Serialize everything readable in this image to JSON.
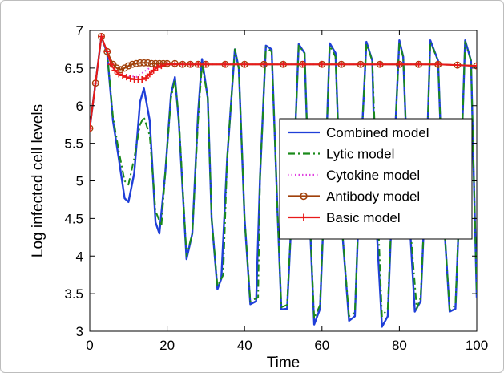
{
  "chart_data": {
    "type": "line",
    "title": "",
    "xlabel": "Time",
    "ylabel": "Log infected cell levels",
    "xlim": [
      0,
      100
    ],
    "ylim": [
      3,
      7
    ],
    "xticks": [
      0,
      20,
      40,
      60,
      80,
      100
    ],
    "yticks": [
      3,
      3.5,
      4,
      4.5,
      5,
      5.5,
      6,
      6.5,
      7
    ],
    "grid": false,
    "legend_position": "right",
    "series": [
      {
        "name": "Combined model",
        "color": "#1f3fd8",
        "style": "solid",
        "x": [
          0,
          1.5,
          3,
          4.5,
          6,
          7.5,
          9,
          10,
          11.5,
          13,
          14,
          15.5,
          17,
          18,
          19.5,
          21,
          22,
          23,
          25,
          26.5,
          28,
          29,
          30.5,
          31.5,
          33,
          34,
          35.5,
          37.5,
          38.5,
          40,
          41.5,
          43,
          44,
          45.5,
          47,
          48.5,
          49.5,
          51,
          52.5,
          54,
          55.5,
          57,
          58,
          59.5,
          61,
          62,
          63.5,
          65,
          67,
          68.5,
          70,
          71.5,
          73,
          74,
          75.5,
          77,
          78.5,
          80,
          81,
          82.5,
          84,
          85.5,
          87,
          88,
          90,
          91.5,
          93,
          94.5,
          96,
          97,
          98.5,
          100
        ],
        "y": [
          5.7,
          6.3,
          6.92,
          6.7,
          5.8,
          5.3,
          4.77,
          4.72,
          5.1,
          6.05,
          6.23,
          5.8,
          4.45,
          4.3,
          5.1,
          6.15,
          6.38,
          5.8,
          3.96,
          4.3,
          5.9,
          6.62,
          6.1,
          4.5,
          3.56,
          3.7,
          5.3,
          6.75,
          6.5,
          4.5,
          3.36,
          3.4,
          5.05,
          6.8,
          6.75,
          4.6,
          3.29,
          3.3,
          4.9,
          6.82,
          6.7,
          4.3,
          3.09,
          3.3,
          5.3,
          6.83,
          6.7,
          4.5,
          3.14,
          3.2,
          5.3,
          6.85,
          6.6,
          4.5,
          3.06,
          3.2,
          5.2,
          6.87,
          6.65,
          4.6,
          3.26,
          3.4,
          5.2,
          6.87,
          6.6,
          4.5,
          3.26,
          3.3,
          5.3,
          6.87,
          6.6,
          3.45
        ]
      },
      {
        "name": "Lytic model",
        "color": "#1a8a1a",
        "style": "dashdot",
        "x": [
          0,
          1.5,
          3,
          4.5,
          6,
          7.5,
          9,
          10,
          11.5,
          13,
          14,
          15.5,
          17,
          18.5,
          19.5,
          21,
          22,
          23,
          25,
          26.5,
          28,
          29,
          30.5,
          31.5,
          33,
          34.5,
          35.5,
          37.5,
          38.5,
          40,
          41.5,
          43.5,
          44,
          45.5,
          47,
          48.5,
          49.5,
          51,
          52.5,
          54,
          55.5,
          57,
          58,
          59.5,
          61,
          62,
          63.5,
          65,
          67,
          68.5,
          70,
          71.5,
          73,
          74.5,
          75.5,
          77,
          78.5,
          80,
          81,
          82.5,
          84.5,
          85.5,
          87,
          88,
          90,
          91.5,
          93,
          94.5,
          96,
          97,
          98.5,
          100
        ],
        "y": [
          5.7,
          6.3,
          6.92,
          6.7,
          5.85,
          5.4,
          5.0,
          4.95,
          5.3,
          5.75,
          5.85,
          5.6,
          4.6,
          4.4,
          5.1,
          6.1,
          6.35,
          5.85,
          4.0,
          4.3,
          5.8,
          6.55,
          6.1,
          4.5,
          3.6,
          3.75,
          5.3,
          6.75,
          6.5,
          4.5,
          3.4,
          3.45,
          5.05,
          6.78,
          6.72,
          4.6,
          3.32,
          3.35,
          4.9,
          6.8,
          6.7,
          4.35,
          3.17,
          3.35,
          5.3,
          6.8,
          6.65,
          4.5,
          3.2,
          3.25,
          5.3,
          6.82,
          6.6,
          4.5,
          3.2,
          3.3,
          5.2,
          6.84,
          6.65,
          4.6,
          3.3,
          3.45,
          5.2,
          6.85,
          6.6,
          4.5,
          3.28,
          3.35,
          5.3,
          6.85,
          6.6,
          3.5
        ]
      },
      {
        "name": "Cytokine model",
        "color": "#e040e0",
        "style": "dotted",
        "x": [
          0,
          1.5,
          3,
          4.5,
          6,
          8,
          10,
          12,
          14,
          16,
          18,
          20,
          30,
          40,
          50,
          60,
          70,
          80,
          90,
          100
        ],
        "y": [
          5.7,
          6.3,
          6.92,
          6.72,
          6.5,
          6.42,
          6.4,
          6.38,
          6.45,
          6.52,
          6.54,
          6.55,
          6.55,
          6.55,
          6.55,
          6.55,
          6.55,
          6.55,
          6.55,
          6.53
        ]
      },
      {
        "name": "Antibody model",
        "color": "#a0400a",
        "style": "solid-marker-circle",
        "x": [
          0,
          1.5,
          3,
          4.5,
          6,
          7,
          8,
          9,
          10,
          11,
          12,
          13,
          14,
          15,
          16,
          17,
          18,
          19,
          20,
          22,
          24,
          26,
          28,
          30,
          35,
          40,
          45,
          50,
          55,
          60,
          65,
          70,
          75,
          80,
          85,
          90,
          95,
          100
        ],
        "y": [
          5.7,
          6.3,
          6.92,
          6.72,
          6.55,
          6.5,
          6.48,
          6.5,
          6.53,
          6.55,
          6.56,
          6.57,
          6.57,
          6.57,
          6.56,
          6.56,
          6.56,
          6.56,
          6.56,
          6.56,
          6.55,
          6.55,
          6.55,
          6.55,
          6.55,
          6.55,
          6.55,
          6.55,
          6.55,
          6.55,
          6.55,
          6.55,
          6.55,
          6.55,
          6.55,
          6.55,
          6.54,
          6.53
        ]
      },
      {
        "name": "Basic model",
        "color": "#e81a1a",
        "style": "solid-marker-plus",
        "x": [
          0,
          1.5,
          3,
          4.5,
          5.5,
          6.5,
          7.5,
          8.5,
          9.5,
          10.5,
          11.5,
          12.5,
          13.5,
          14.5,
          15.5,
          16.5,
          17.5,
          18.5,
          20,
          22,
          24,
          26,
          28,
          30,
          35,
          40,
          45,
          50,
          55,
          60,
          65,
          70,
          75,
          80,
          85,
          90,
          95,
          100
        ],
        "y": [
          5.7,
          6.3,
          6.92,
          6.72,
          6.55,
          6.47,
          6.42,
          6.4,
          6.38,
          6.36,
          6.35,
          6.35,
          6.35,
          6.37,
          6.42,
          6.47,
          6.51,
          6.53,
          6.55,
          6.55,
          6.55,
          6.55,
          6.55,
          6.55,
          6.55,
          6.55,
          6.55,
          6.55,
          6.55,
          6.55,
          6.55,
          6.55,
          6.55,
          6.55,
          6.55,
          6.55,
          6.54,
          6.53
        ]
      }
    ]
  }
}
